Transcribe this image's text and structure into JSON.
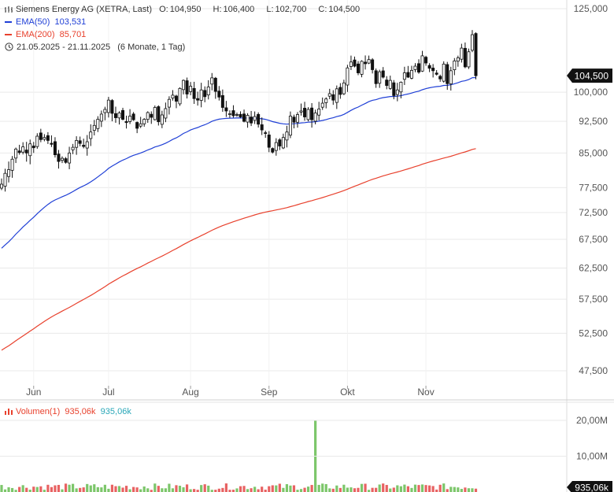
{
  "header": {
    "instrument": "Siemens Energy AG (XETRA, Last)",
    "o_label": "O:",
    "o_value": "104,950",
    "h_label": "H:",
    "h_value": "106,400",
    "l_label": "L:",
    "l_value": "102,700",
    "c_label": "C:",
    "c_value": "104,500",
    "ema50_label": "EMA(50)",
    "ema50_value": "103,531",
    "ema200_label": "EMA(200)",
    "ema200_value": "85,701",
    "range": "21.05.2025 - 21.11.2025",
    "period": "(6 Monate, 1 Tag)"
  },
  "volume": {
    "label": "Volumen(1)",
    "value_red": "935,06k",
    "value_teal": "935,06k",
    "axis_ticks": [
      "20,00M",
      "10,00M"
    ],
    "last_badge": "935,06k"
  },
  "colors": {
    "up": "#ffffff",
    "down": "#111111",
    "ema50": "#1f3fd6",
    "ema200": "#e8412d",
    "vol_up": "#7cc66a",
    "vol_down": "#e86262",
    "badge": "#111111",
    "grid": "#e9e9e9"
  },
  "chart_data": {
    "type": "candlestick",
    "x_ticks": [
      "Jun",
      "Jul",
      "Aug",
      "Sep",
      "Okt",
      "Nov"
    ],
    "y_ticks": [
      "125,000",
      "100,000",
      "92,500",
      "85,000",
      "77,500",
      "72,500",
      "67,500",
      "62,500",
      "57,500",
      "52,500",
      "47,500"
    ],
    "y_tick_values": [
      125000,
      100000,
      92500,
      85000,
      77500,
      72500,
      67500,
      62500,
      57500,
      52500,
      47500
    ],
    "last_price_label": "104,500",
    "last_price": 104.5,
    "y_log": true,
    "ylim": [
      44,
      128
    ],
    "month_starts": {
      "Jun": 9,
      "Jul": 30,
      "Aug": 53,
      "Sep": 75,
      "Okt": 97,
      "Nov": 119
    },
    "closes": [
      78.2,
      80.5,
      81.3,
      83.6,
      85.9,
      85.1,
      86.4,
      85.0,
      87.1,
      86.2,
      88.9,
      88.1,
      88.6,
      87.9,
      87.0,
      84.6,
      83.1,
      83.8,
      82.9,
      85.0,
      86.3,
      87.9,
      87.2,
      86.5,
      87.6,
      89.9,
      91.5,
      93.0,
      94.3,
      95.5,
      97.9,
      94.5,
      93.4,
      94.6,
      93.0,
      92.2,
      93.8,
      92.9,
      90.8,
      91.9,
      93.0,
      94.7,
      93.5,
      96.0,
      92.4,
      94.1,
      95.7,
      98.1,
      99.2,
      97.6,
      101.0,
      103.2,
      99.5,
      101.6,
      98.3,
      97.9,
      100.6,
      98.8,
      101.4,
      103.9,
      100.2,
      98.7,
      96.0,
      95.1,
      94.4,
      93.9,
      94.2,
      93.6,
      92.5,
      94.0,
      92.1,
      93.7,
      91.8,
      90.4,
      89.6,
      86.3,
      85.2,
      87.4,
      86.6,
      88.6,
      89.9,
      93.8,
      92.3,
      94.2,
      95.1,
      93.6,
      95.5,
      92.9,
      94.6,
      95.6,
      97.1,
      98.2,
      99.6,
      97.9,
      100.9,
      99.4,
      102.5,
      106.7,
      108.4,
      107.2,
      105.3,
      108.6,
      107.9,
      109.1,
      106.2,
      102.3,
      105.6,
      104.1,
      101.8,
      103.2,
      99.1,
      100.6,
      102.7,
      105.3,
      104.1,
      106.0,
      107.2,
      105.5,
      110.2,
      108.1,
      106.6,
      105.9,
      104.9,
      103.6,
      107.8,
      102.3,
      105.9,
      108.7,
      109.6,
      112.5,
      107.0,
      111.4,
      116.6,
      104.5
    ],
    "ema50_values": [
      65.4,
      101.2,
      103.531
    ],
    "ema200_values": [
      49.9,
      72.3,
      85.701
    ],
    "volume_max_millions": 20.0,
    "volume_spike_millions": 20.0
  }
}
